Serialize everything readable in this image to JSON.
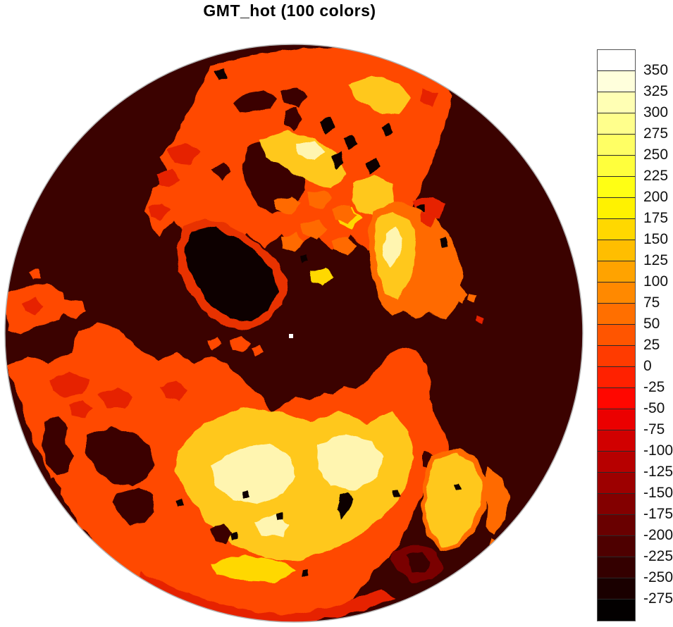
{
  "title": "GMT_hot (100 colors)",
  "map": {
    "description": "North-polar hemispheric topography map rendered with the GMT hot colormap",
    "pole_dot_color": "#FFFFFF"
  },
  "palette": {
    "ocean": "#3B0200",
    "land": "#FF4A00",
    "land2": "#FF6A00",
    "red": "#E62000",
    "gold": "#FFC81E",
    "yellow": "#FFD800",
    "pale": "#FFF5B0",
    "black": "#0D0000",
    "fringe": "#E83000",
    "darkred": "#7A0000",
    "rim": "#B5B5B5"
  },
  "colorbar": {
    "labels_top_to_bottom": [
      "350",
      "325",
      "300",
      "275",
      "250",
      "225",
      "200",
      "175",
      "150",
      "125",
      "100",
      "75",
      "50",
      "25",
      "0",
      "-25",
      "-50",
      "-75",
      "-100",
      "-125",
      "-150",
      "-175",
      "-200",
      "-225",
      "-250",
      "-275"
    ],
    "cell_colors_top_to_bottom": [
      "#FFFFFE",
      "#FFFFDC",
      "#FFFFB4",
      "#FFFF8C",
      "#FFFF64",
      "#FFFF3C",
      "#FFFF14",
      "#FFF200",
      "#FFD800",
      "#FFBE00",
      "#FFA300",
      "#FF8900",
      "#FF6F00",
      "#FF5500",
      "#FF3B00",
      "#FF2100",
      "#FF0700",
      "#EB0000",
      "#D10000",
      "#B70000",
      "#9D0000",
      "#830000",
      "#690000",
      "#4E0000",
      "#340000",
      "#1A0000",
      "#030000"
    ]
  }
}
